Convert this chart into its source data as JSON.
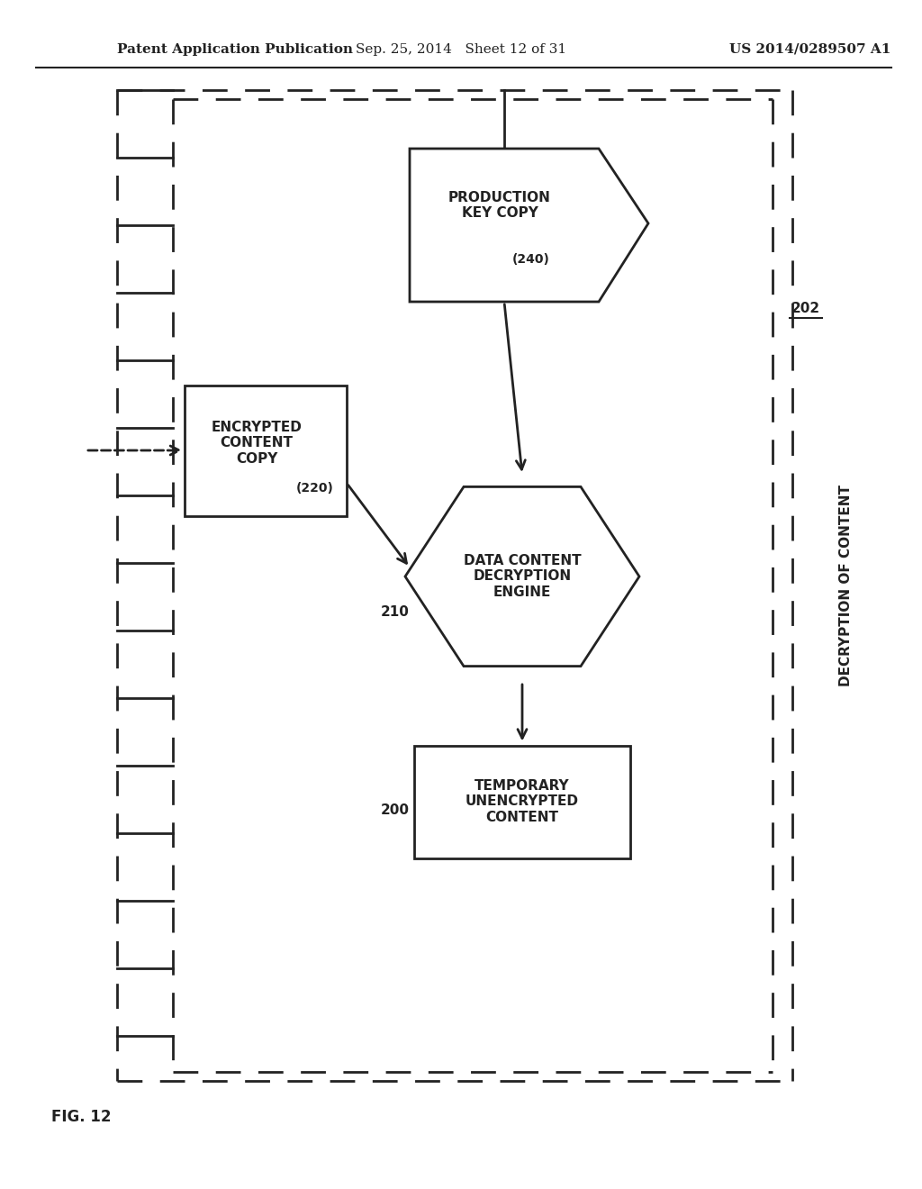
{
  "background": "#ffffff",
  "header_left": "Patent Application Publication",
  "header_mid": "Sep. 25, 2014   Sheet 12 of 31",
  "header_right": "US 2014/0289507 A1",
  "fig_label": "FIG. 12",
  "side_label": "DECRYPTION OF CONTENT",
  "label_202": "202",
  "label_210": "210",
  "label_200": "200",
  "enc_label": "ENCRYPTED\nCONTENT\nCOPY",
  "enc_sublabel": "(220)",
  "prod_label": "PRODUCTION\nKEY COPY",
  "prod_sublabel": "(240)",
  "hex_label": "DATA CONTENT\nDECRYPTION\nENGINE",
  "tmp_label": "TEMPORARY\nUNENCRYPTED\nCONTENT"
}
